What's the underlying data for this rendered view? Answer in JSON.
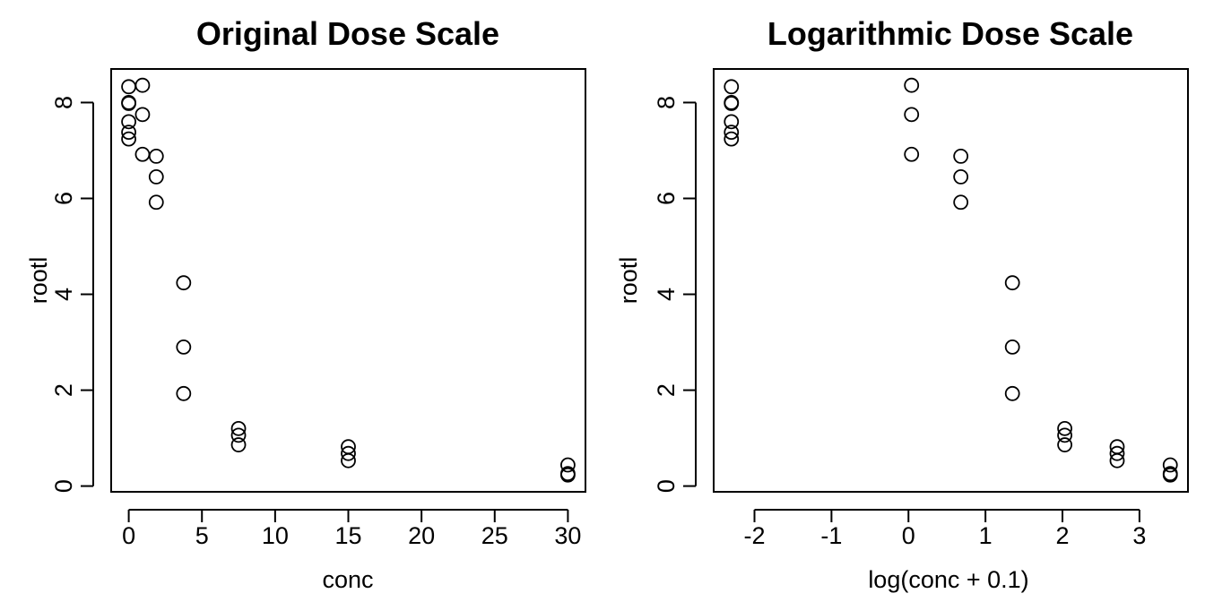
{
  "figure": {
    "foreground_color": "#000000",
    "background_color": "#ffffff"
  },
  "chart_data": [
    {
      "type": "scatter",
      "title": "Original Dose Scale",
      "xlabel": "conc",
      "ylabel": "rootl",
      "x_ticks": [
        0,
        5,
        10,
        15,
        20,
        25,
        30
      ],
      "x_tick_labels": [
        "0",
        "5",
        "10",
        "15",
        "20",
        "25",
        "30"
      ],
      "y_ticks": [
        0,
        2,
        4,
        6,
        8
      ],
      "y_tick_labels": [
        "0",
        "2",
        "4",
        "6",
        "8"
      ],
      "xlim": [
        -1.2,
        31.2
      ],
      "ylim": [
        -0.12,
        8.7
      ],
      "grid": false,
      "marker": "open-circle",
      "points": [
        {
          "x": 0,
          "y": 8.33
        },
        {
          "x": 0,
          "y": 8.0
        },
        {
          "x": 0,
          "y": 7.98
        },
        {
          "x": 0,
          "y": 7.6
        },
        {
          "x": 0,
          "y": 7.38
        },
        {
          "x": 0,
          "y": 7.24
        },
        {
          "x": 0.94,
          "y": 8.36
        },
        {
          "x": 0.94,
          "y": 7.75
        },
        {
          "x": 0.94,
          "y": 6.92
        },
        {
          "x": 1.88,
          "y": 6.88
        },
        {
          "x": 1.88,
          "y": 6.45
        },
        {
          "x": 1.88,
          "y": 5.92
        },
        {
          "x": 3.75,
          "y": 4.24
        },
        {
          "x": 3.75,
          "y": 2.9
        },
        {
          "x": 3.75,
          "y": 1.93
        },
        {
          "x": 7.5,
          "y": 1.2
        },
        {
          "x": 7.5,
          "y": 1.06
        },
        {
          "x": 7.5,
          "y": 0.86
        },
        {
          "x": 15,
          "y": 0.82
        },
        {
          "x": 15,
          "y": 0.68
        },
        {
          "x": 15,
          "y": 0.53
        },
        {
          "x": 30,
          "y": 0.44
        },
        {
          "x": 30,
          "y": 0.26
        },
        {
          "x": 30,
          "y": 0.23
        }
      ]
    },
    {
      "type": "scatter",
      "title": "Logarithmic Dose Scale",
      "xlabel": "log(conc + 0.1)",
      "ylabel": "rootl",
      "x_ticks": [
        -2,
        -1,
        0,
        1,
        2,
        3
      ],
      "x_tick_labels": [
        "-2",
        "-1",
        "0",
        "1",
        "2",
        "3"
      ],
      "y_ticks": [
        0,
        2,
        4,
        6,
        8
      ],
      "y_tick_labels": [
        "0",
        "2",
        "4",
        "6",
        "8"
      ],
      "xlim": [
        -2.53,
        3.63
      ],
      "ylim": [
        -0.12,
        8.7
      ],
      "grid": false,
      "marker": "open-circle",
      "points": [
        {
          "x": -2.3,
          "y": 8.33
        },
        {
          "x": -2.3,
          "y": 8.0
        },
        {
          "x": -2.3,
          "y": 7.98
        },
        {
          "x": -2.3,
          "y": 7.6
        },
        {
          "x": -2.3,
          "y": 7.38
        },
        {
          "x": -2.3,
          "y": 7.24
        },
        {
          "x": 0.04,
          "y": 8.36
        },
        {
          "x": 0.04,
          "y": 7.75
        },
        {
          "x": 0.04,
          "y": 6.92
        },
        {
          "x": 0.68,
          "y": 6.88
        },
        {
          "x": 0.68,
          "y": 6.45
        },
        {
          "x": 0.68,
          "y": 5.92
        },
        {
          "x": 1.35,
          "y": 4.24
        },
        {
          "x": 1.35,
          "y": 2.9
        },
        {
          "x": 1.35,
          "y": 1.93
        },
        {
          "x": 2.03,
          "y": 1.2
        },
        {
          "x": 2.03,
          "y": 1.06
        },
        {
          "x": 2.03,
          "y": 0.86
        },
        {
          "x": 2.71,
          "y": 0.82
        },
        {
          "x": 2.71,
          "y": 0.68
        },
        {
          "x": 2.71,
          "y": 0.53
        },
        {
          "x": 3.4,
          "y": 0.44
        },
        {
          "x": 3.4,
          "y": 0.26
        },
        {
          "x": 3.4,
          "y": 0.23
        }
      ]
    }
  ]
}
